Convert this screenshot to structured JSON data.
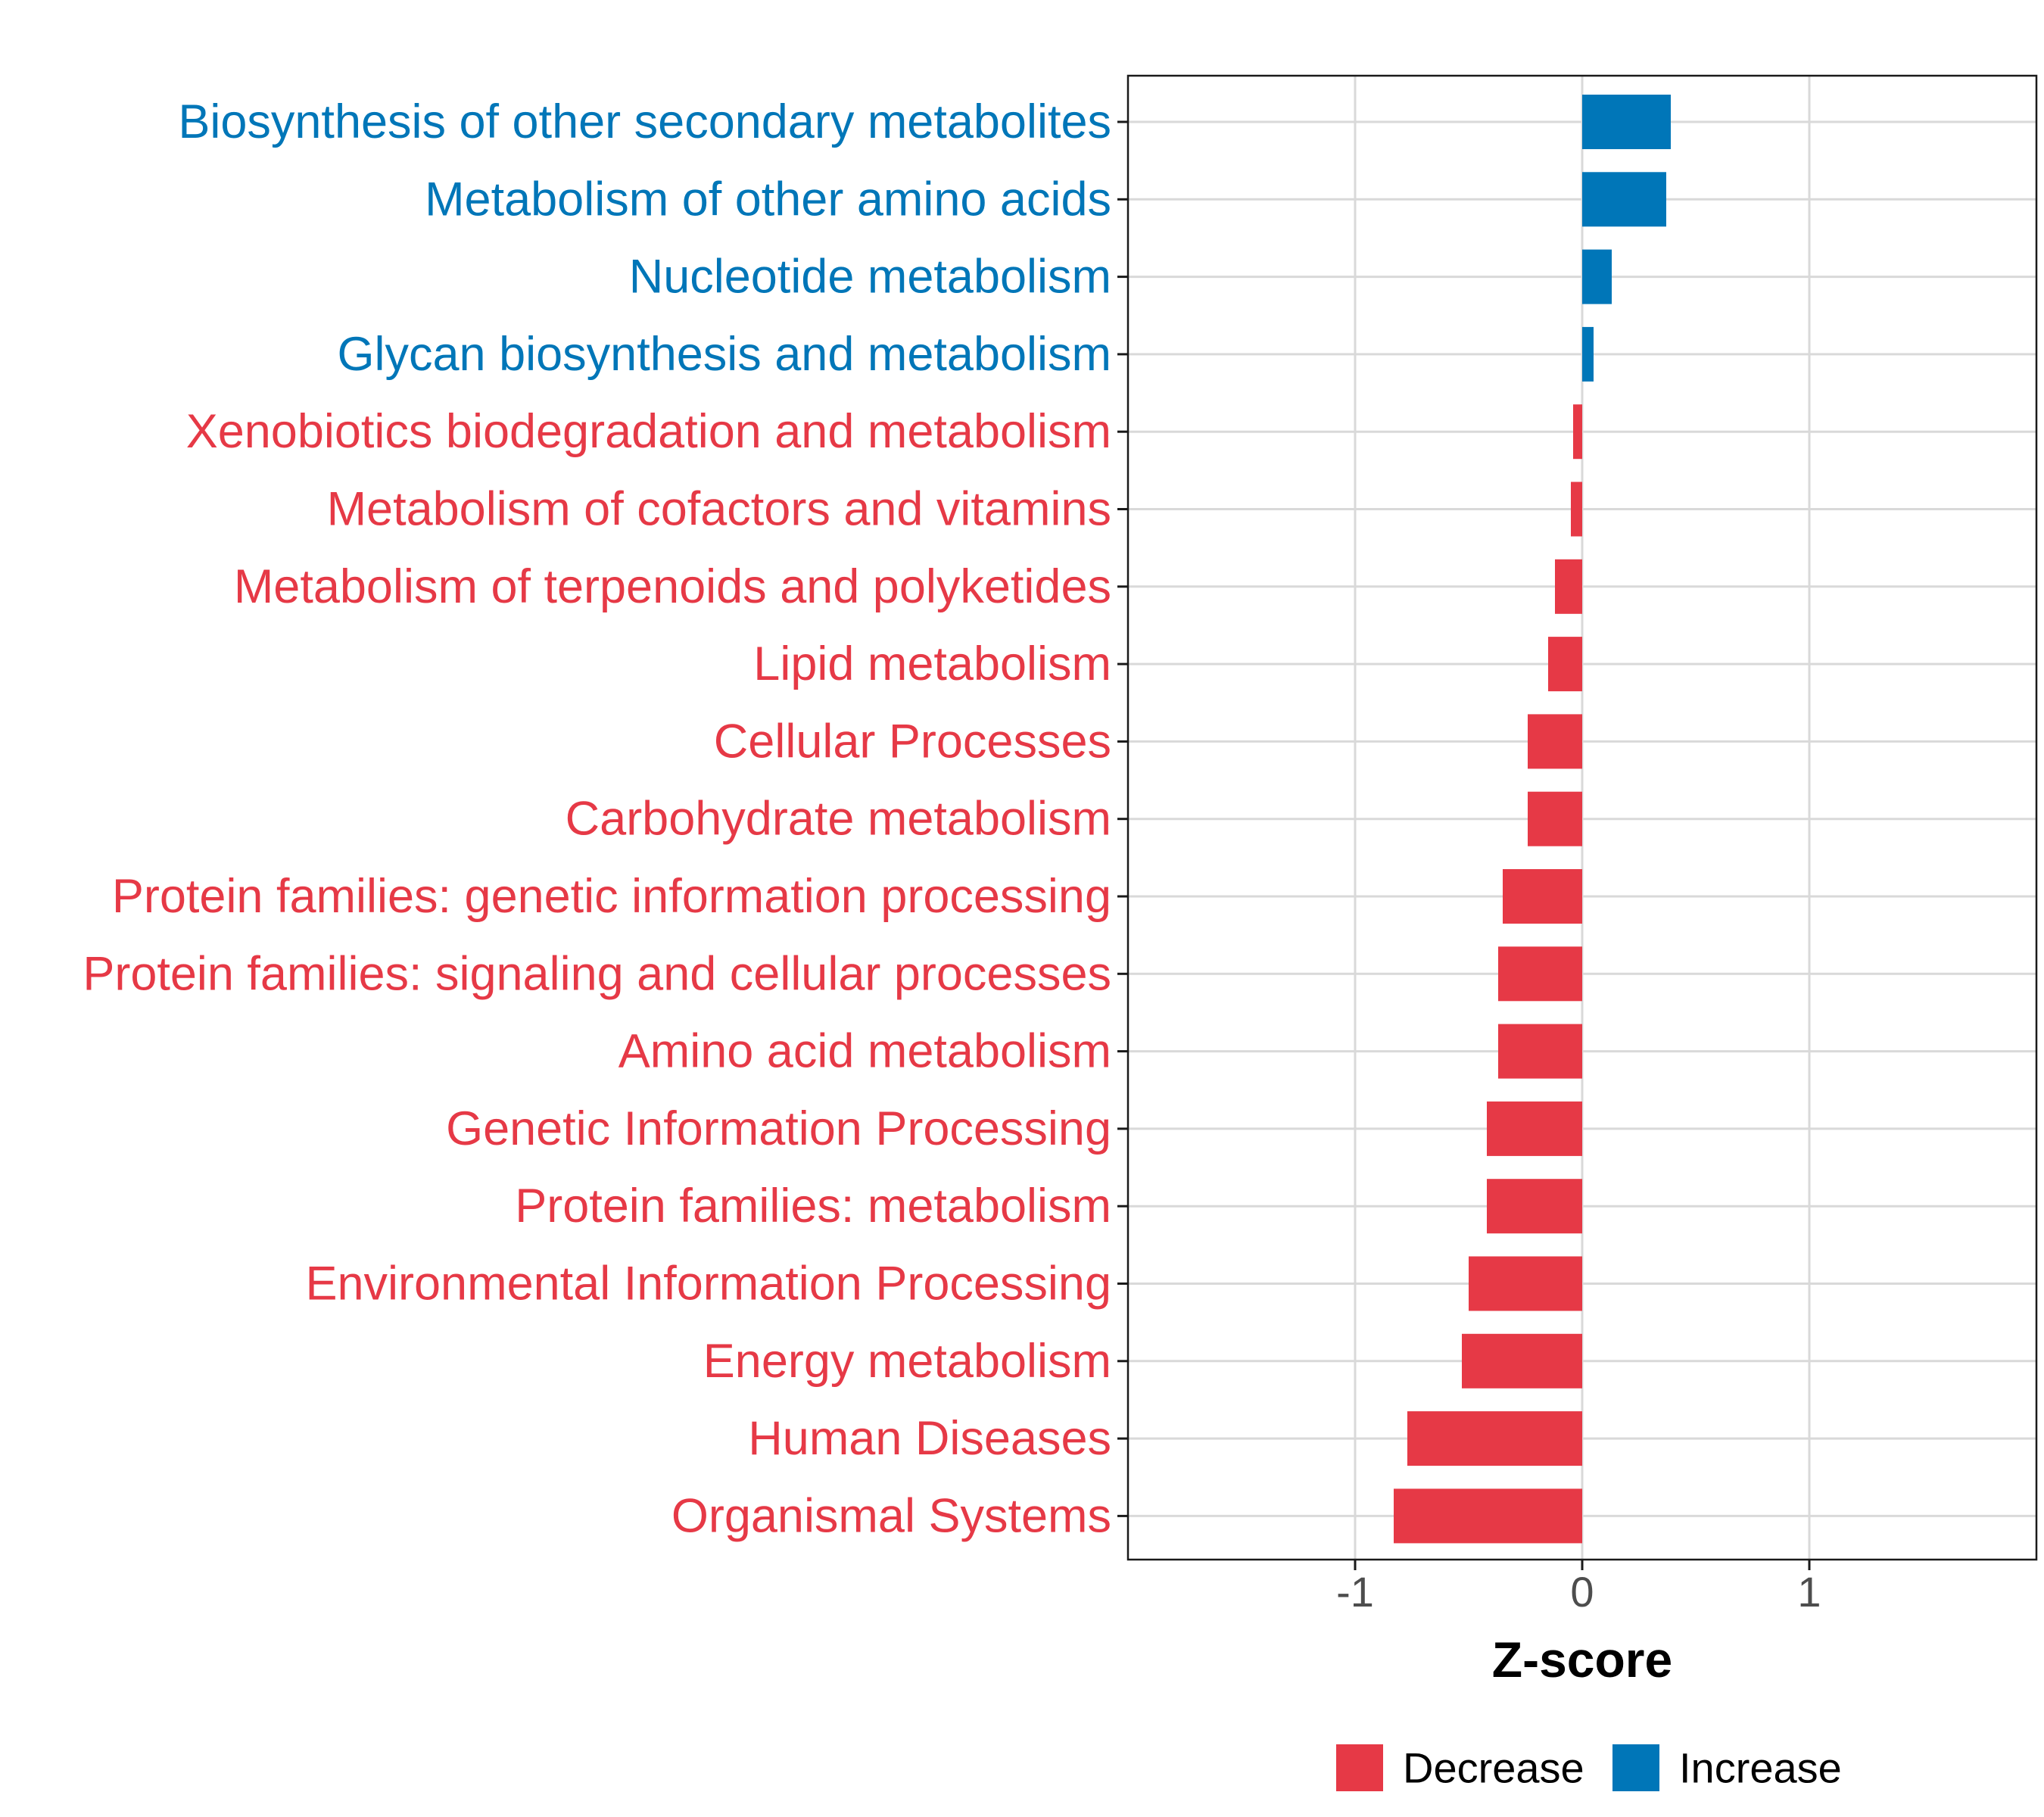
{
  "colors": {
    "decrease": "#e63946",
    "increase": "#0076b8",
    "grid": "#d9d9d9",
    "axis": "#1a1a1a"
  },
  "chart_data": {
    "type": "bar",
    "orientation": "horizontal",
    "title": "",
    "xlabel": "Z-score",
    "ylabel": "",
    "xlim": [
      -2,
      2
    ],
    "xticks": [
      -1,
      0,
      1
    ],
    "xtick_labels": [
      "-1",
      "0",
      "1"
    ],
    "grid": true,
    "legend_position": "bottom",
    "legend": [
      {
        "label": "Decrease",
        "color_key": "decrease"
      },
      {
        "label": "Increase",
        "color_key": "increase"
      }
    ],
    "categories": [
      "Biosynthesis of other secondary metabolites",
      "Metabolism of other amino acids",
      "Nucleotide metabolism",
      "Glycan biosynthesis and metabolism",
      "Xenobiotics biodegradation and metabolism",
      "Metabolism of cofactors and vitamins",
      "Metabolism of terpenoids and polyketides",
      "Lipid metabolism",
      "Cellular Processes",
      "Carbohydrate metabolism",
      "Protein families: genetic information processing",
      "Protein families: signaling and cellular processes",
      "Amino acid metabolism",
      "Genetic Information Processing",
      "Protein families: metabolism",
      "Environmental Information Processing",
      "Energy metabolism",
      "Human Diseases",
      "Organismal Systems"
    ],
    "values": [
      0.39,
      0.37,
      0.13,
      0.05,
      -0.04,
      -0.05,
      -0.12,
      -0.15,
      -0.24,
      -0.24,
      -0.35,
      -0.37,
      -0.37,
      -0.42,
      -0.42,
      -0.5,
      -0.53,
      -0.77,
      -0.83
    ],
    "direction": [
      "Increase",
      "Increase",
      "Increase",
      "Increase",
      "Decrease",
      "Decrease",
      "Decrease",
      "Decrease",
      "Decrease",
      "Decrease",
      "Decrease",
      "Decrease",
      "Decrease",
      "Decrease",
      "Decrease",
      "Decrease",
      "Decrease",
      "Decrease",
      "Decrease"
    ]
  }
}
